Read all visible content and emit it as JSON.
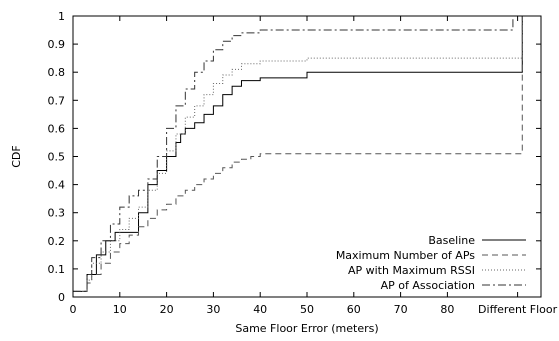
{
  "chart_data": {
    "type": "line",
    "xlabel": "Same Floor Error (meters)",
    "ylabel": "CDF",
    "xlim": [
      0,
      100
    ],
    "ylim": [
      0,
      1
    ],
    "x_ticks": [
      "0",
      "10",
      "20",
      "30",
      "40",
      "50",
      "60",
      "70",
      "80",
      "Different Floor"
    ],
    "x_tick_values": [
      0,
      10,
      20,
      30,
      40,
      50,
      60,
      70,
      80,
      95
    ],
    "y_ticks": [
      "0",
      "0.1",
      "0.2",
      "0.3",
      "0.4",
      "0.5",
      "0.6",
      "0.7",
      "0.8",
      "0.9",
      "1"
    ],
    "y_tick_values": [
      0,
      0.1,
      0.2,
      0.3,
      0.4,
      0.5,
      0.6,
      0.7,
      0.8,
      0.9,
      1.0
    ],
    "grid": false,
    "legend_position": "bottom-right",
    "series": [
      {
        "name": "Baseline",
        "style": "solid",
        "color": "#000000",
        "x": [
          0,
          3,
          3,
          5,
          5,
          7,
          7,
          9,
          9,
          14,
          14,
          16,
          16,
          18,
          20,
          22,
          23,
          24,
          26,
          28,
          30,
          32,
          34,
          36,
          40,
          50,
          96,
          96,
          100
        ],
        "y": [
          0.02,
          0.02,
          0.08,
          0.12,
          0.15,
          0.18,
          0.2,
          0.22,
          0.23,
          0.25,
          0.3,
          0.35,
          0.4,
          0.45,
          0.5,
          0.55,
          0.58,
          0.6,
          0.62,
          0.65,
          0.68,
          0.72,
          0.75,
          0.77,
          0.78,
          0.8,
          0.8,
          1.0,
          1.0
        ]
      },
      {
        "name": "Maximum Number of APs",
        "style": "dashed",
        "color": "#555555",
        "x": [
          0,
          3,
          4,
          6,
          8,
          10,
          12,
          14,
          16,
          18,
          20,
          22,
          24,
          26,
          28,
          30,
          32,
          34,
          36,
          38,
          40,
          44,
          50,
          96,
          96
        ],
        "y": [
          0.02,
          0.05,
          0.08,
          0.12,
          0.16,
          0.19,
          0.22,
          0.25,
          0.28,
          0.31,
          0.33,
          0.36,
          0.38,
          0.4,
          0.42,
          0.44,
          0.46,
          0.48,
          0.49,
          0.5,
          0.51,
          0.51,
          0.51,
          0.52,
          1.0
        ]
      },
      {
        "name": "AP with Maximum RSSI",
        "style": "dotted",
        "color": "#666666",
        "x": [
          0,
          3,
          4,
          6,
          8,
          10,
          12,
          14,
          16,
          18,
          20,
          22,
          24,
          26,
          28,
          30,
          32,
          34,
          36,
          40,
          50,
          96,
          96
        ],
        "y": [
          0.02,
          0.06,
          0.12,
          0.16,
          0.2,
          0.24,
          0.28,
          0.32,
          0.38,
          0.44,
          0.52,
          0.58,
          0.64,
          0.68,
          0.72,
          0.76,
          0.79,
          0.81,
          0.83,
          0.84,
          0.85,
          0.85,
          1.0
        ]
      },
      {
        "name": "AP of Association",
        "style": "dashdot",
        "color": "#333333",
        "x": [
          0,
          3,
          4,
          6,
          8,
          10,
          12,
          14,
          16,
          18,
          20,
          22,
          24,
          26,
          28,
          30,
          32,
          34,
          36,
          40,
          50,
          94,
          94
        ],
        "y": [
          0.02,
          0.08,
          0.14,
          0.2,
          0.26,
          0.32,
          0.36,
          0.38,
          0.42,
          0.5,
          0.6,
          0.68,
          0.74,
          0.8,
          0.84,
          0.88,
          0.91,
          0.93,
          0.94,
          0.95,
          0.95,
          0.95,
          1.0
        ]
      }
    ]
  }
}
